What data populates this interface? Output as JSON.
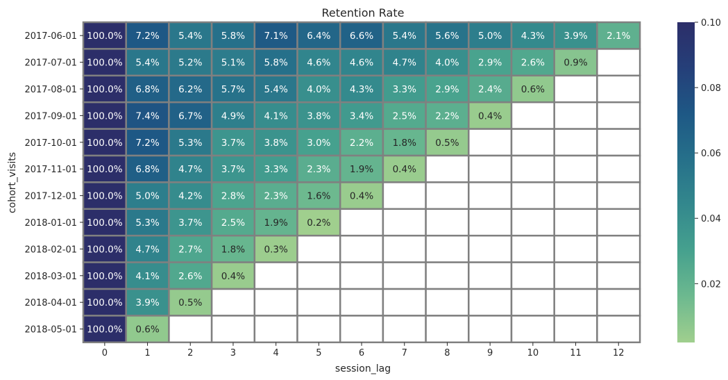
{
  "chart_data": {
    "type": "heatmap",
    "title": "Retention Rate",
    "xlabel": "session_lag",
    "ylabel": "cohort_visits",
    "x_categories": [
      "0",
      "1",
      "2",
      "3",
      "4",
      "5",
      "6",
      "7",
      "8",
      "9",
      "10",
      "11",
      "12"
    ],
    "y_categories": [
      "2017-06-01",
      "2017-07-01",
      "2017-08-01",
      "2017-09-01",
      "2017-10-01",
      "2017-11-01",
      "2017-12-01",
      "2018-01-01",
      "2018-02-01",
      "2018-03-01",
      "2018-04-01",
      "2018-05-01"
    ],
    "values": [
      [
        1.0,
        0.072,
        0.054,
        0.058,
        0.071,
        0.064,
        0.066,
        0.054,
        0.056,
        0.05,
        0.043,
        0.039,
        0.021
      ],
      [
        1.0,
        0.054,
        0.052,
        0.051,
        0.058,
        0.046,
        0.046,
        0.047,
        0.04,
        0.029,
        0.026,
        0.009,
        null
      ],
      [
        1.0,
        0.068,
        0.062,
        0.057,
        0.054,
        0.04,
        0.043,
        0.033,
        0.029,
        0.024,
        0.006,
        null,
        null
      ],
      [
        1.0,
        0.074,
        0.067,
        0.049,
        0.041,
        0.038,
        0.034,
        0.025,
        0.022,
        0.004,
        null,
        null,
        null
      ],
      [
        1.0,
        0.072,
        0.053,
        0.037,
        0.038,
        0.03,
        0.022,
        0.018,
        0.005,
        null,
        null,
        null,
        null
      ],
      [
        1.0,
        0.068,
        0.047,
        0.037,
        0.033,
        0.023,
        0.019,
        0.004,
        null,
        null,
        null,
        null,
        null
      ],
      [
        1.0,
        0.05,
        0.042,
        0.028,
        0.023,
        0.016,
        0.004,
        null,
        null,
        null,
        null,
        null,
        null
      ],
      [
        1.0,
        0.053,
        0.037,
        0.025,
        0.019,
        0.002,
        null,
        null,
        null,
        null,
        null,
        null,
        null
      ],
      [
        1.0,
        0.047,
        0.027,
        0.018,
        0.003,
        null,
        null,
        null,
        null,
        null,
        null,
        null,
        null
      ],
      [
        1.0,
        0.041,
        0.026,
        0.004,
        null,
        null,
        null,
        null,
        null,
        null,
        null,
        null,
        null
      ],
      [
        1.0,
        0.039,
        0.005,
        null,
        null,
        null,
        null,
        null,
        null,
        null,
        null,
        null,
        null
      ],
      [
        1.0,
        0.006,
        null,
        null,
        null,
        null,
        null,
        null,
        null,
        null,
        null,
        null,
        null
      ]
    ],
    "cell_labels": [
      [
        "100.0%",
        "7.2%",
        "5.4%",
        "5.8%",
        "7.1%",
        "6.4%",
        "6.6%",
        "5.4%",
        "5.6%",
        "5.0%",
        "4.3%",
        "3.9%",
        "2.1%"
      ],
      [
        "100.0%",
        "5.4%",
        "5.2%",
        "5.1%",
        "5.8%",
        "4.6%",
        "4.6%",
        "4.7%",
        "4.0%",
        "2.9%",
        "2.6%",
        "0.9%",
        ""
      ],
      [
        "100.0%",
        "6.8%",
        "6.2%",
        "5.7%",
        "5.4%",
        "4.0%",
        "4.3%",
        "3.3%",
        "2.9%",
        "2.4%",
        "0.6%",
        "",
        ""
      ],
      [
        "100.0%",
        "7.4%",
        "6.7%",
        "4.9%",
        "4.1%",
        "3.8%",
        "3.4%",
        "2.5%",
        "2.2%",
        "0.4%",
        "",
        "",
        ""
      ],
      [
        "100.0%",
        "7.2%",
        "5.3%",
        "3.7%",
        "3.8%",
        "3.0%",
        "2.2%",
        "1.8%",
        "0.5%",
        "",
        "",
        "",
        ""
      ],
      [
        "100.0%",
        "6.8%",
        "4.7%",
        "3.7%",
        "3.3%",
        "2.3%",
        "1.9%",
        "0.4%",
        "",
        "",
        "",
        "",
        ""
      ],
      [
        "100.0%",
        "5.0%",
        "4.2%",
        "2.8%",
        "2.3%",
        "1.6%",
        "0.4%",
        "",
        "",
        "",
        "",
        "",
        ""
      ],
      [
        "100.0%",
        "5.3%",
        "3.7%",
        "2.5%",
        "1.9%",
        "0.2%",
        "",
        "",
        "",
        "",
        "",
        "",
        ""
      ],
      [
        "100.0%",
        "4.7%",
        "2.7%",
        "1.8%",
        "0.3%",
        "",
        "",
        "",
        "",
        "",
        "",
        "",
        ""
      ],
      [
        "100.0%",
        "4.1%",
        "2.6%",
        "0.4%",
        "",
        "",
        "",
        "",
        "",
        "",
        "",
        "",
        ""
      ],
      [
        "100.0%",
        "3.9%",
        "0.5%",
        "",
        "",
        "",
        "",
        "",
        "",
        "",
        "",
        "",
        ""
      ],
      [
        "100.0%",
        "0.6%",
        "",
        "",
        "",
        "",
        "",
        "",
        "",
        "",
        "",
        "",
        ""
      ]
    ],
    "colorbar": {
      "vmin": 0.002,
      "vmax": 0.1,
      "ticks": [
        0.02,
        0.04,
        0.06,
        0.08,
        0.1
      ],
      "tick_labels": [
        "0.02",
        "0.04",
        "0.06",
        "0.08",
        "0.10"
      ]
    },
    "colormap": "crest",
    "colormap_stops": [
      "#a0cf8e",
      "#6db98f",
      "#46a18e",
      "#33888d",
      "#26708a",
      "#1e5885",
      "#253f79",
      "#2c2e69"
    ],
    "grid_line_color": "#808080",
    "text_colors": {
      "dark": "#ffffff",
      "light": "#262626"
    }
  }
}
